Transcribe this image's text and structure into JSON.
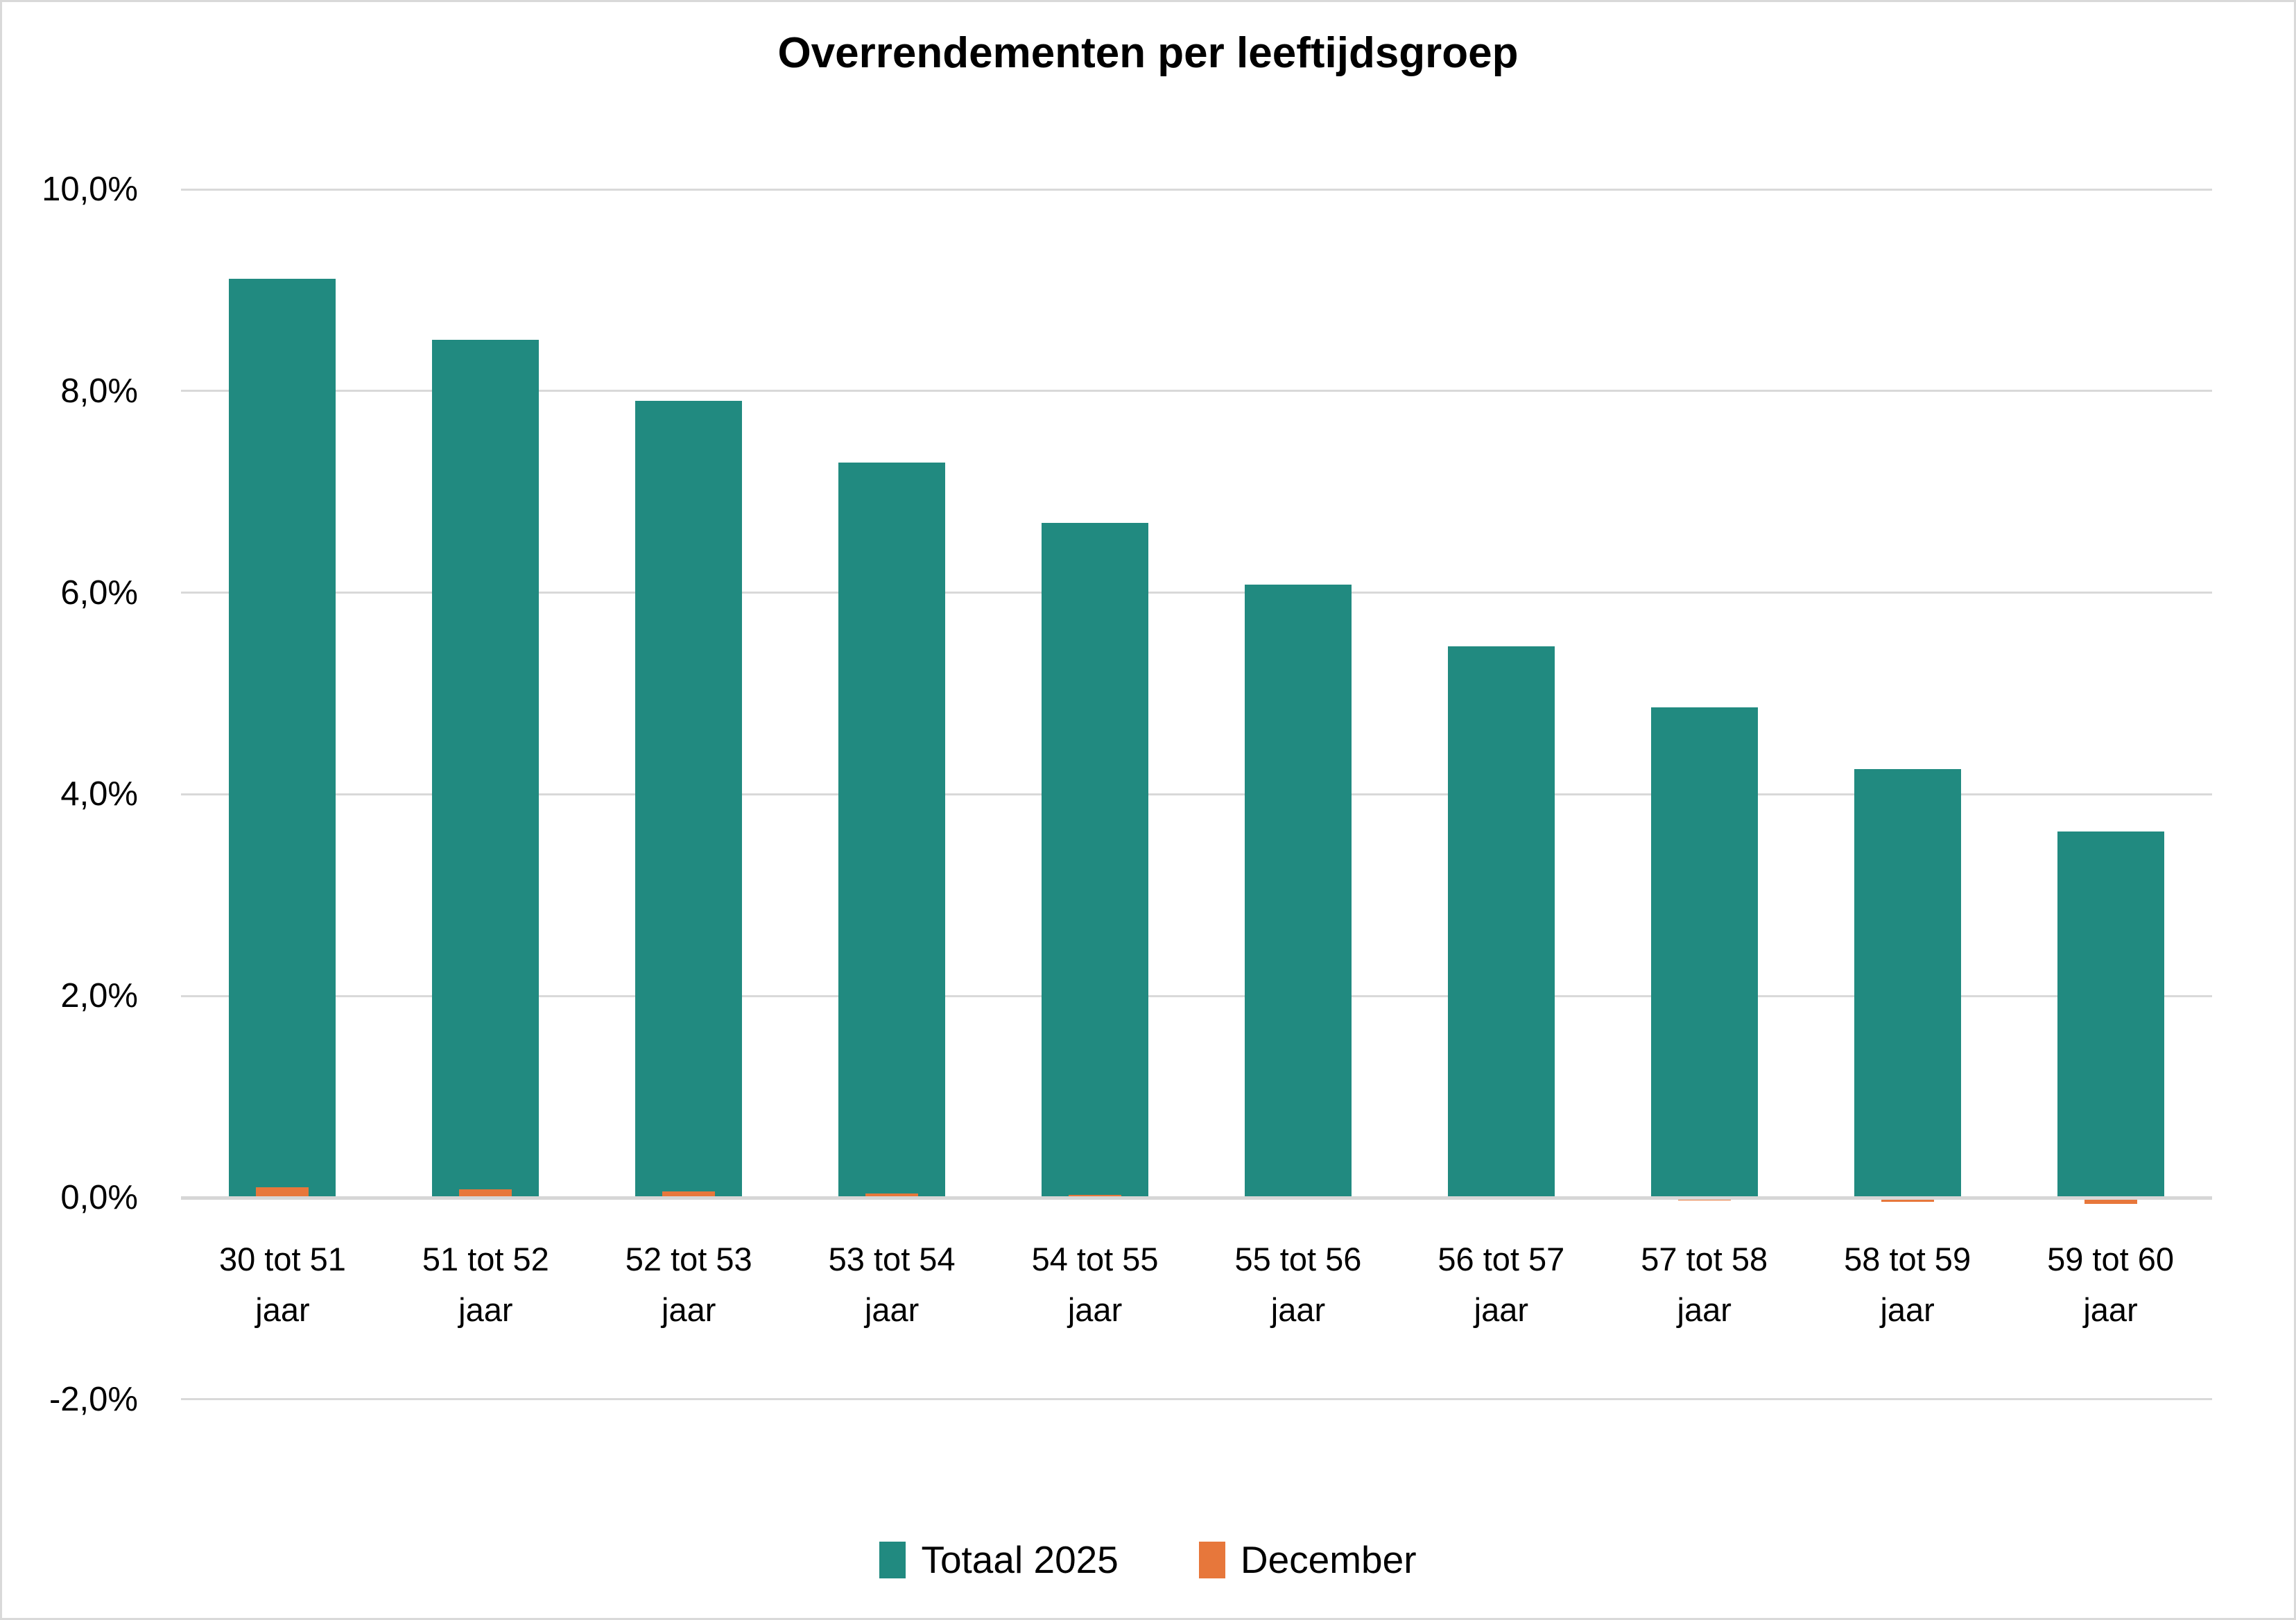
{
  "title": "Overrendementen per leeftijdsgroep",
  "chart_data": {
    "type": "bar",
    "title": "Overrendementen per leeftijdsgroep",
    "y_axis": {
      "tick_labels": [
        "10,0%",
        "8,0%",
        "6,0%",
        "4,0%",
        "2,0%",
        "0,0%",
        "-2,0%"
      ],
      "tick_values": [
        10,
        8,
        6,
        4,
        2,
        0,
        -2
      ],
      "ylim": [
        -2.6,
        10.9
      ],
      "grid": true,
      "number_format": "percent, Dutch decimal comma"
    },
    "categories": [
      "30 tot 51 jaar",
      "51 tot 52 jaar",
      "52 tot 53 jaar",
      "53 tot 54 jaar",
      "54 tot 55 jaar",
      "55 tot 56 jaar",
      "56 tot 57 jaar",
      "57 tot 58 jaar",
      "58 tot 59 jaar",
      "59 tot 60 jaar"
    ],
    "category_label_lines": [
      [
        "30 tot 51",
        "jaar"
      ],
      [
        "51 tot 52",
        "jaar"
      ],
      [
        "52 tot 53",
        "jaar"
      ],
      [
        "53 tot 54",
        "jaar"
      ],
      [
        "54 tot 55",
        "jaar"
      ],
      [
        "55 tot 56",
        "jaar"
      ],
      [
        "56 tot 57",
        "jaar"
      ],
      [
        "57 tot 58",
        "jaar"
      ],
      [
        "58 tot 59",
        "jaar"
      ],
      [
        "59 tot 60",
        "jaar"
      ]
    ],
    "series": [
      {
        "name": "Totaal 2025",
        "color": "#218a80",
        "values": [
          9.11,
          8.51,
          7.9,
          7.29,
          6.69,
          6.08,
          5.47,
          4.86,
          4.25,
          3.63
        ]
      },
      {
        "name": "December",
        "color": "#e7773b",
        "values": [
          0.1,
          0.08,
          0.06,
          0.04,
          0.03,
          0.0,
          -0.01,
          -0.03,
          -0.04,
          -0.06
        ]
      }
    ],
    "legend": {
      "position": "bottom",
      "entries": [
        "Totaal 2025",
        "December"
      ]
    }
  },
  "colors": {
    "background": "#ffffff",
    "frame_border": "#d9d9d9",
    "gridline": "#d9d9d9",
    "axis_line": "#d6d6d6",
    "text": "#000000",
    "totaal_2025": "#218a80",
    "december": "#e7773b"
  }
}
